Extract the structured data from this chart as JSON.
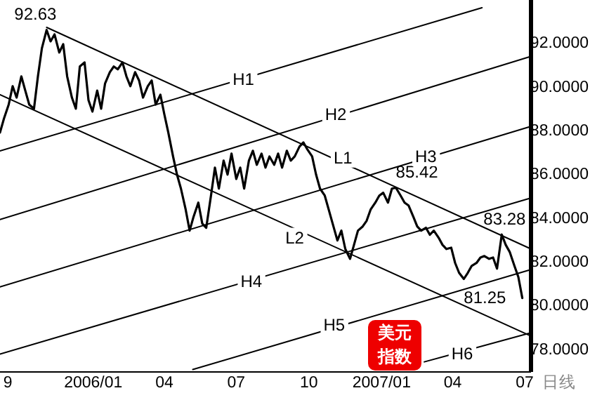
{
  "chart_data": {
    "type": "line",
    "xlabel": "日线",
    "xlim": [
      "2005-09-05",
      "2007-07-09"
    ],
    "ylim": [
      77,
      94
    ],
    "xticks": [
      {
        "value": "2005-09-15",
        "label": "9"
      },
      {
        "value": "2006-01-01",
        "label": "2006/01"
      },
      {
        "value": "2006-04-01",
        "label": "04"
      },
      {
        "value": "2006-07-01",
        "label": "07"
      },
      {
        "value": "2006-10-01",
        "label": "10"
      },
      {
        "value": "2007-01-01",
        "label": "2007/01"
      },
      {
        "value": "2007-04-01",
        "label": "04"
      },
      {
        "value": "2007-07-01",
        "label": "07"
      }
    ],
    "yticks": [
      {
        "value": 78,
        "label": "78.0000"
      },
      {
        "value": 80,
        "label": "80.0000"
      },
      {
        "value": 82,
        "label": "82.0000"
      },
      {
        "value": 84,
        "label": "84.0000"
      },
      {
        "value": 86,
        "label": "86.0000"
      },
      {
        "value": 88,
        "label": "88.0000"
      },
      {
        "value": 90,
        "label": "90.0000"
      },
      {
        "value": 92,
        "label": "92.0000"
      }
    ],
    "grid": false,
    "marker": "none",
    "line_style": "solid",
    "series": [
      {
        "color": "#000000",
        "x": [
          "2005-09-05",
          "2005-09-10",
          "2005-09-16",
          "2005-09-21",
          "2005-09-26",
          "2005-10-02",
          "2005-10-07",
          "2005-10-12",
          "2005-10-18",
          "2005-10-23",
          "2005-10-28",
          "2005-11-03",
          "2005-11-08",
          "2005-11-13",
          "2005-11-19",
          "2005-11-24",
          "2005-11-29",
          "2005-12-05",
          "2005-12-10",
          "2005-12-15",
          "2005-12-21",
          "2005-12-26",
          "2005-12-31",
          "2006-01-06",
          "2006-01-11",
          "2006-01-16",
          "2006-01-22",
          "2006-01-27",
          "2006-02-01",
          "2006-02-07",
          "2006-02-12",
          "2006-02-17",
          "2006-02-23",
          "2006-02-28",
          "2006-03-05",
          "2006-03-11",
          "2006-03-16",
          "2006-03-21",
          "2006-03-27",
          "2006-04-01",
          "2006-04-06",
          "2006-04-12",
          "2006-04-17",
          "2006-04-22",
          "2006-04-28",
          "2006-05-03",
          "2006-05-08",
          "2006-05-14",
          "2006-05-19",
          "2006-05-24",
          "2006-05-30",
          "2006-06-04",
          "2006-06-09",
          "2006-06-15",
          "2006-06-20",
          "2006-06-25",
          "2006-07-01",
          "2006-07-06",
          "2006-07-11",
          "2006-07-17",
          "2006-07-22",
          "2006-07-27",
          "2006-08-02",
          "2006-08-07",
          "2006-08-12",
          "2006-08-18",
          "2006-08-23",
          "2006-08-28",
          "2006-09-03",
          "2006-09-08",
          "2006-09-13",
          "2006-09-19",
          "2006-09-24",
          "2006-09-29",
          "2006-10-05",
          "2006-10-10",
          "2006-10-15",
          "2006-10-21",
          "2006-10-26",
          "2006-10-31",
          "2006-11-06",
          "2006-11-11",
          "2006-11-16",
          "2006-11-22",
          "2006-11-27",
          "2006-12-02",
          "2006-12-08",
          "2006-12-13",
          "2006-12-18",
          "2006-12-24",
          "2006-12-29",
          "2007-01-03",
          "2007-01-09",
          "2007-01-14",
          "2007-01-19",
          "2007-01-25",
          "2007-01-30",
          "2007-02-04",
          "2007-02-10",
          "2007-02-15",
          "2007-02-20",
          "2007-02-26",
          "2007-03-03",
          "2007-03-08",
          "2007-03-14",
          "2007-03-19",
          "2007-03-24",
          "2007-03-30",
          "2007-04-04",
          "2007-04-09",
          "2007-04-15",
          "2007-04-20",
          "2007-04-25",
          "2007-05-01",
          "2007-05-06",
          "2007-05-11",
          "2007-05-17",
          "2007-05-22",
          "2007-05-27",
          "2007-06-02",
          "2007-06-07",
          "2007-06-12",
          "2007-06-18",
          "2007-06-23",
          "2007-06-28"
        ],
        "values": [
          87.94,
          88.58,
          89.22,
          90.06,
          89.54,
          90.51,
          89.86,
          89.22,
          89.03,
          90.51,
          91.79,
          92.63,
          92.11,
          92.43,
          91.6,
          91.98,
          90.51,
          89.54,
          89.03,
          90.96,
          91.15,
          89.42,
          88.9,
          89.86,
          89.03,
          90.19,
          90.7,
          90.96,
          90.83,
          91.15,
          90.51,
          90.06,
          90.7,
          90.32,
          89.54,
          90.06,
          90.32,
          89.22,
          89.67,
          88.77,
          87.94,
          86.85,
          86.02,
          85.38,
          84.42,
          83.46,
          84.1,
          84.74,
          83.78,
          83.59,
          85.06,
          86.34,
          85.38,
          86.66,
          86.02,
          86.98,
          85.82,
          86.34,
          85.38,
          86.66,
          87.11,
          86.47,
          86.98,
          86.34,
          86.85,
          86.47,
          86.98,
          86.34,
          87.11,
          86.66,
          86.85,
          87.3,
          87.49,
          87.17,
          86.85,
          86.02,
          85.38,
          85.06,
          84.42,
          83.78,
          83.01,
          83.46,
          82.62,
          82.17,
          82.81,
          83.46,
          83.65,
          83.91,
          84.42,
          84.74,
          85.06,
          85.19,
          84.74,
          85.38,
          85.42,
          85.06,
          84.74,
          84.61,
          84.1,
          83.65,
          83.46,
          83.59,
          83.27,
          83.46,
          83.14,
          82.81,
          82.62,
          82.68,
          81.98,
          81.53,
          81.25,
          81.53,
          81.85,
          81.98,
          82.23,
          82.3,
          82.17,
          82.23,
          81.72,
          83.28,
          82.81,
          82.49,
          81.85,
          81.34,
          80.38
        ]
      },
      {
        "color": "#000000",
        "x": [
          "2005-11-03",
          "2007-07-09"
        ],
        "values": [
          92.75,
          82.62
        ]
      },
      {
        "color": "#000000",
        "x": [
          "2005-09-05",
          "2007-07-09"
        ],
        "values": [
          89.67,
          78.64
        ]
      },
      {
        "color": "#000000",
        "x": [
          "2005-09-05",
          "2007-05-08"
        ],
        "values": [
          87.1,
          93.65
        ]
      },
      {
        "color": "#000000",
        "x": [
          "2005-09-05",
          "2007-07-07"
        ],
        "values": [
          83.97,
          91.4
        ]
      },
      {
        "color": "#000000",
        "x": [
          "2005-09-05",
          "2007-07-07"
        ],
        "values": [
          80.89,
          88.2
        ]
      },
      {
        "color": "#000000",
        "x": [
          "2005-09-05",
          "2007-07-07"
        ],
        "values": [
          77.82,
          84.93
        ]
      },
      {
        "color": "#000000",
        "x": [
          "2006-05-07",
          "2007-07-07"
        ],
        "values": [
          77.11,
          81.66
        ]
      },
      {
        "color": "#000000",
        "x": [
          "2007-02-24",
          "2007-07-07"
        ],
        "values": [
          77.46,
          78.77
        ]
      }
    ],
    "annotations": [
      {
        "text": "92.63",
        "x": "2005-11-03",
        "y": 92.63
      },
      {
        "text": "85.42",
        "x": "2007-01-19",
        "y": 85.42
      },
      {
        "text": "83.28",
        "x": "2007-06-02",
        "y": 83.28
      },
      {
        "text": "81.25",
        "x": "2007-04-15",
        "y": 81.25
      },
      {
        "text": "H1",
        "x": "2006-07-10",
        "y": 90.37
      },
      {
        "text": "H2",
        "x": "2006-11-04",
        "y": 88.77
      },
      {
        "text": "H3",
        "x": "2007-02-26",
        "y": 86.85
      },
      {
        "text": "L1",
        "x": "2006-11-13",
        "y": 86.79
      },
      {
        "text": "L2",
        "x": "2006-09-13",
        "y": 83.14
      },
      {
        "text": "H4",
        "x": "2006-07-20",
        "y": 81.15
      },
      {
        "text": "H5",
        "x": "2006-11-02",
        "y": 79.16
      },
      {
        "text": "H6",
        "x": "2007-04-13",
        "y": 77.82
      },
      "美元指数"
    ]
  }
}
